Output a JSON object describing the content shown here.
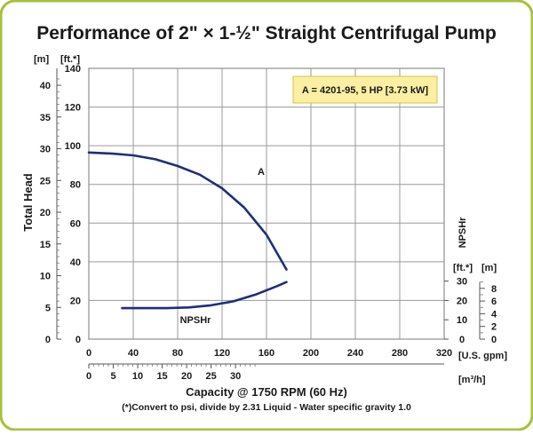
{
  "title": "Performance of 2\" × 1-½\" Straight Centrifugal Pump",
  "legend_box": "A = 4201-95, 5 HP [3.73 kW]",
  "colors": {
    "border": "#a6c23b",
    "plot_bg": "#ffffff",
    "grid": "#9a9a9a",
    "curve": "#1f2f7a",
    "legend_bg": "#fbefa3",
    "legend_border": "#d8c24a"
  },
  "axes": {
    "head_m": {
      "unit": "[m]",
      "ticks": [
        "0",
        "5",
        "10",
        "15",
        "20",
        "25",
        "30",
        "35",
        "40"
      ]
    },
    "head_ft": {
      "unit": "[ft.*]",
      "ticks": [
        "0",
        "20",
        "40",
        "60",
        "80",
        "100",
        "120",
        "140"
      ]
    },
    "ylabel": "Total Head",
    "npshr_label": "NPSHr",
    "npshr_ft": {
      "unit": "[ft.*]",
      "ticks": [
        "0",
        "10",
        "20",
        "30"
      ]
    },
    "npshr_m": {
      "unit": "[m]",
      "ticks": [
        "0",
        "2",
        "4",
        "6",
        "8"
      ]
    },
    "gpm": {
      "unit": "[U.S. gpm]",
      "ticks": [
        "0",
        "40",
        "80",
        "120",
        "160",
        "200",
        "240",
        "280",
        "320"
      ]
    },
    "m3h": {
      "unit": "[m³/h]",
      "ticks": [
        "0",
        "5",
        "10",
        "15",
        "20",
        "25",
        "30"
      ]
    },
    "xlabel": "Capacity @ 1750 RPM (60 Hz)"
  },
  "footnote": "(*)Convert to psi, divide by 2.31     Liquid - Water specific gravity 1.0",
  "chart_data": {
    "type": "line",
    "title": "Performance of 2\" × 1-½\" Straight Centrifugal Pump",
    "xlabel": "Capacity @ 1750 RPM (60 Hz)",
    "ylabel": "Total Head",
    "xlim_gpm": [
      0,
      320
    ],
    "ylim_ft": [
      0,
      140
    ],
    "grid": true,
    "series": [
      {
        "name": "A",
        "x": [
          0,
          20,
          40,
          60,
          80,
          100,
          120,
          140,
          160,
          178
        ],
        "y": [
          96.5,
          96,
          95,
          93,
          89.5,
          85,
          78,
          68,
          54,
          36
        ]
      },
      {
        "name": "NPSHr",
        "x": [
          30,
          50,
          70,
          90,
          110,
          130,
          150,
          170,
          178
        ],
        "y": [
          16,
          16,
          16,
          16.4,
          17.5,
          19.5,
          23,
          27.5,
          29.5
        ]
      }
    ]
  }
}
